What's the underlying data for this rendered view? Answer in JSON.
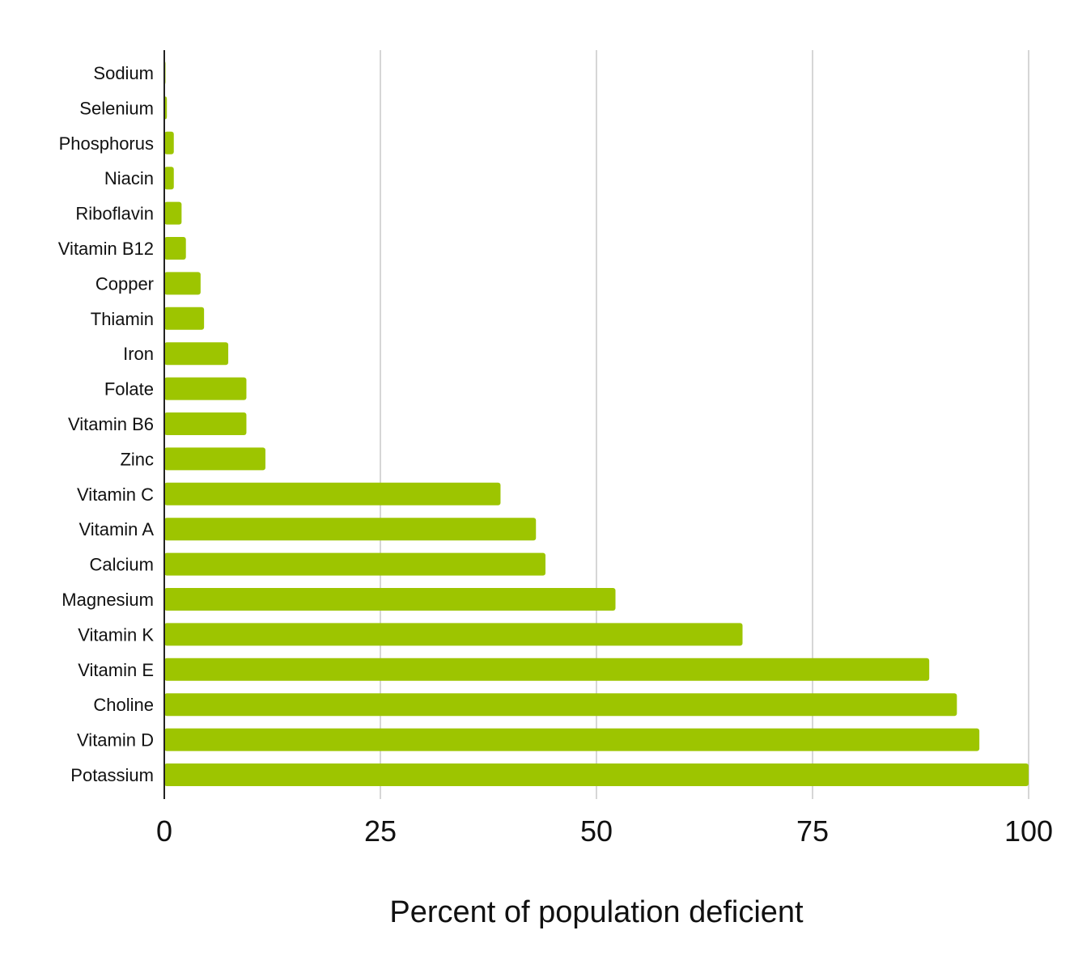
{
  "chart_data": {
    "type": "bar",
    "orientation": "horizontal",
    "title": "",
    "xlabel": "Percent of population deficient",
    "ylabel": "",
    "xlim": [
      0,
      100
    ],
    "x_ticks": [
      "0",
      "25",
      "50",
      "75",
      "100"
    ],
    "grid": "vertical",
    "legend": "none",
    "bar_color": "#9dc500",
    "grid_color": "#c8c8c8",
    "axis_color": "#222222",
    "categories": [
      "Sodium",
      "Selenium",
      "Phosphorus",
      "Niacin",
      "Riboflavin",
      "Vitamin B12",
      "Copper",
      "Thiamin",
      "Iron",
      "Folate",
      "Vitamin B6",
      "Zinc",
      "Vitamin C",
      "Vitamin A",
      "Calcium",
      "Magnesium",
      "Vitamin K",
      "Vitamin E",
      "Choline",
      "Vitamin D",
      "Potassium"
    ],
    "values": [
      0.1,
      0.3,
      1.1,
      1.1,
      2.0,
      2.5,
      4.2,
      4.6,
      7.4,
      9.5,
      9.5,
      11.7,
      38.9,
      43.0,
      44.1,
      52.2,
      66.9,
      88.5,
      91.7,
      94.3,
      100
    ]
  }
}
